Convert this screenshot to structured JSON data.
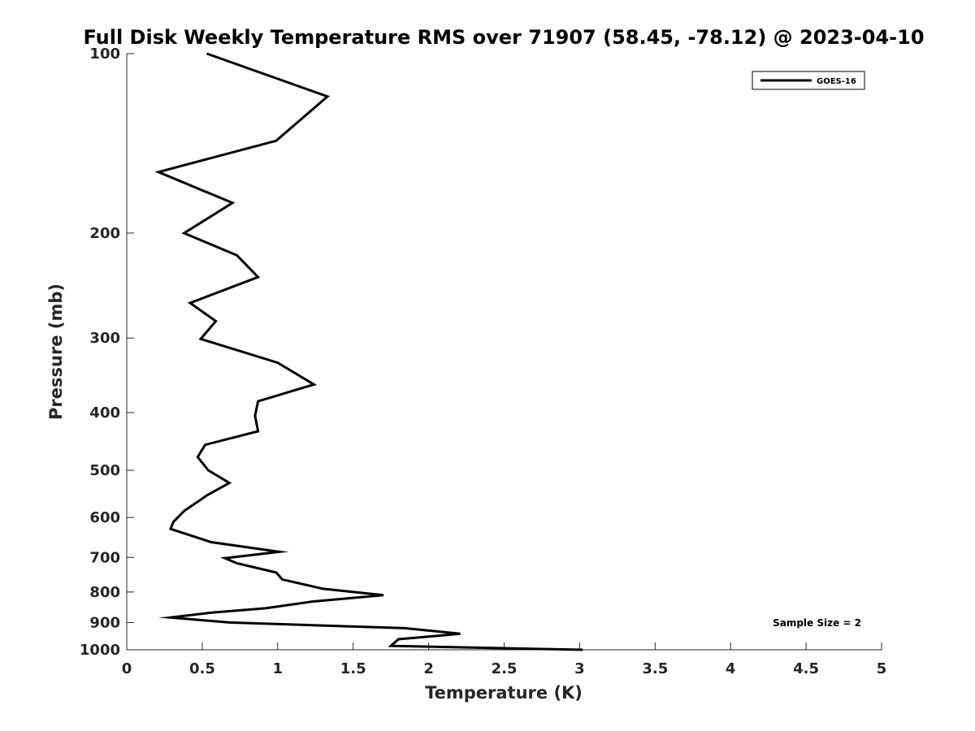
{
  "chart_data": {
    "type": "line",
    "title": "Full Disk Weekly Temperature RMS over 71907 (58.45, -78.12) @ 2023-04-10",
    "xlabel": "Temperature (K)",
    "ylabel": "Pressure (mb)",
    "xlim": [
      0,
      5
    ],
    "ylim": [
      100,
      1000
    ],
    "y_scale": "log",
    "y_reversed": true,
    "x_ticks": [
      0,
      0.5,
      1,
      1.5,
      2,
      2.5,
      3,
      3.5,
      4,
      4.5,
      5
    ],
    "x_tick_labels": [
      "0",
      "0.5",
      "1",
      "1.5",
      "2",
      "2.5",
      "3",
      "3.5",
      "4",
      "4.5",
      "5"
    ],
    "y_ticks": [
      100,
      200,
      300,
      400,
      500,
      600,
      700,
      800,
      900,
      1000
    ],
    "y_tick_labels": [
      "100",
      "200",
      "300",
      "400",
      "500",
      "600",
      "700",
      "800",
      "900",
      "1000"
    ],
    "grid": false,
    "legend_position": "top-right",
    "annotation": "Sample Size = 2",
    "series": [
      {
        "name": "GOES-16",
        "color": "#000000",
        "x": [
          0.53,
          1.33,
          0.99,
          0.21,
          0.7,
          0.38,
          0.73,
          0.87,
          0.42,
          0.59,
          0.49,
          1.0,
          1.24,
          0.87,
          0.85,
          0.87,
          0.52,
          0.47,
          0.54,
          0.68,
          0.53,
          0.38,
          0.31,
          0.29,
          0.56,
          1.01,
          0.65,
          0.73,
          0.99,
          1.03,
          1.3,
          1.7,
          1.23,
          0.92,
          0.57,
          0.29,
          0.68,
          1.84,
          2.21,
          1.8,
          1.75,
          3.02
        ],
        "y": [
          100,
          118,
          140,
          158,
          178,
          200,
          218,
          237,
          262,
          281,
          301,
          330,
          359,
          383,
          405,
          430,
          453,
          475,
          500,
          525,
          551,
          585,
          610,
          627,
          660,
          685,
          702,
          716,
          742,
          762,
          790,
          810,
          830,
          852,
          866,
          883,
          900,
          920,
          940,
          960,
          985,
          1000
        ]
      }
    ]
  }
}
